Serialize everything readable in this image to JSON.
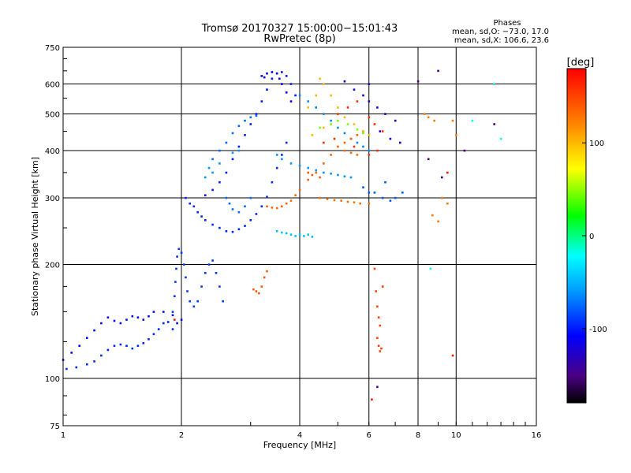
{
  "chart_data": {
    "type": "scatter",
    "title": "Tromsø 20170327 15:00:00−15:01:43",
    "subtitle": "RwPretec (8p)",
    "xlabel": "Frequency [MHz]",
    "ylabel": "Stationary phase Virtual Height [km]",
    "x_scale": "log",
    "y_scale": "log",
    "xlim": [
      1,
      16
    ],
    "ylim": [
      75,
      750
    ],
    "x_ticks": [
      1,
      2,
      4,
      6,
      8,
      10,
      16
    ],
    "y_ticks": [
      75,
      100,
      200,
      300,
      400,
      500,
      600,
      750
    ],
    "grid": true,
    "stats": {
      "heading": "Phases",
      "o_line": "mean, sd,O: −73.0, 17.0",
      "x_line": "mean, sd,X: 106.6, 23.6"
    },
    "colorbar": {
      "label": "[deg]",
      "range": [
        -180,
        180
      ],
      "ticks": [
        100,
        0,
        -100
      ],
      "colormap": "rainbow"
    },
    "series": [
      {
        "phase": -105,
        "points": [
          [
            1.0,
            112
          ],
          [
            1.05,
            117
          ],
          [
            1.1,
            122
          ],
          [
            1.15,
            128
          ],
          [
            1.2,
            134
          ],
          [
            1.25,
            140
          ],
          [
            1.3,
            145
          ],
          [
            1.35,
            142
          ],
          [
            1.4,
            140
          ],
          [
            1.45,
            143
          ],
          [
            1.5,
            146
          ],
          [
            1.55,
            145
          ],
          [
            1.6,
            143
          ],
          [
            1.65,
            146
          ],
          [
            1.7,
            150
          ],
          [
            1.8,
            150
          ],
          [
            1.9,
            147
          ],
          [
            1.95,
            140
          ],
          [
            2.0,
            143
          ]
        ]
      },
      {
        "phase": -95,
        "points": [
          [
            1.02,
            106
          ],
          [
            1.08,
            107
          ],
          [
            1.15,
            109
          ],
          [
            1.2,
            111
          ],
          [
            1.25,
            115
          ],
          [
            1.3,
            119
          ],
          [
            1.35,
            122
          ],
          [
            1.4,
            123
          ],
          [
            1.45,
            122
          ],
          [
            1.5,
            120
          ],
          [
            1.55,
            122
          ],
          [
            1.6,
            124
          ],
          [
            1.65,
            127
          ],
          [
            1.7,
            131
          ],
          [
            1.75,
            135
          ],
          [
            1.8,
            140
          ],
          [
            1.85,
            141
          ],
          [
            1.9,
            135
          ]
        ]
      },
      {
        "phase": -90,
        "points": [
          [
            1.9,
            150
          ],
          [
            1.92,
            165
          ],
          [
            1.93,
            180
          ],
          [
            1.94,
            195
          ],
          [
            1.95,
            210
          ],
          [
            1.97,
            220
          ],
          [
            2.0,
            215
          ],
          [
            2.03,
            200
          ],
          [
            2.05,
            185
          ],
          [
            2.07,
            170
          ],
          [
            2.1,
            160
          ],
          [
            2.15,
            155
          ],
          [
            2.2,
            160
          ],
          [
            2.25,
            175
          ],
          [
            2.3,
            190
          ],
          [
            2.35,
            200
          ],
          [
            2.4,
            205
          ],
          [
            2.45,
            190
          ],
          [
            2.5,
            175
          ],
          [
            2.55,
            160
          ]
        ]
      },
      {
        "phase": -95,
        "points": [
          [
            2.05,
            300
          ],
          [
            2.1,
            290
          ],
          [
            2.15,
            285
          ],
          [
            2.2,
            275
          ],
          [
            2.25,
            268
          ],
          [
            2.3,
            262
          ],
          [
            2.4,
            255
          ],
          [
            2.5,
            250
          ],
          [
            2.6,
            245
          ],
          [
            2.7,
            244
          ],
          [
            2.8,
            248
          ],
          [
            2.9,
            253
          ],
          [
            3.0,
            262
          ],
          [
            3.1,
            272
          ],
          [
            3.2,
            285
          ],
          [
            3.3,
            302
          ],
          [
            3.4,
            330
          ],
          [
            3.5,
            360
          ],
          [
            3.6,
            390
          ],
          [
            3.7,
            420
          ]
        ]
      },
      {
        "phase": -100,
        "points": [
          [
            2.3,
            305
          ],
          [
            2.4,
            315
          ],
          [
            2.5,
            330
          ],
          [
            2.6,
            350
          ],
          [
            2.7,
            380
          ],
          [
            2.8,
            410
          ],
          [
            2.9,
            440
          ],
          [
            3.0,
            470
          ],
          [
            3.1,
            500
          ],
          [
            3.2,
            540
          ],
          [
            3.3,
            580
          ],
          [
            3.4,
            620
          ],
          [
            3.5,
            640
          ],
          [
            3.6,
            645
          ],
          [
            3.7,
            630
          ],
          [
            3.8,
            600
          ],
          [
            3.9,
            560
          ]
        ]
      },
      {
        "phase": -110,
        "points": [
          [
            3.2,
            630
          ],
          [
            3.25,
            625
          ],
          [
            3.3,
            640
          ],
          [
            3.4,
            645
          ],
          [
            3.5,
            640
          ],
          [
            3.55,
            620
          ],
          [
            3.6,
            600
          ],
          [
            3.7,
            570
          ],
          [
            3.8,
            540
          ]
        ]
      },
      {
        "phase": -75,
        "points": [
          [
            2.4,
            380
          ],
          [
            2.5,
            400
          ],
          [
            2.6,
            420
          ],
          [
            2.7,
            445
          ],
          [
            2.8,
            465
          ],
          [
            2.9,
            480
          ],
          [
            3.0,
            490
          ],
          [
            3.1,
            495
          ],
          [
            2.6,
            300
          ],
          [
            2.65,
            290
          ],
          [
            2.7,
            280
          ],
          [
            2.8,
            275
          ],
          [
            2.9,
            285
          ],
          [
            3.0,
            300
          ]
        ]
      },
      {
        "phase": -60,
        "points": [
          [
            2.3,
            340
          ],
          [
            2.35,
            360
          ],
          [
            2.4,
            350
          ],
          [
            2.5,
            370
          ],
          [
            2.7,
            395
          ],
          [
            2.8,
            400
          ],
          [
            3.5,
            390
          ],
          [
            3.6,
            380
          ],
          [
            3.8,
            370
          ],
          [
            4.0,
            365
          ],
          [
            4.2,
            360
          ],
          [
            4.4,
            355
          ],
          [
            4.6,
            350
          ],
          [
            4.8,
            348
          ],
          [
            5.0,
            345
          ],
          [
            5.2,
            342
          ],
          [
            5.4,
            340
          ]
        ]
      },
      {
        "phase": -45,
        "points": [
          [
            3.5,
            245
          ],
          [
            3.6,
            243
          ],
          [
            3.7,
            242
          ],
          [
            3.8,
            240
          ],
          [
            3.9,
            238
          ],
          [
            4.0,
            240
          ],
          [
            4.1,
            238
          ],
          [
            4.2,
            240
          ],
          [
            4.3,
            237
          ]
        ]
      },
      {
        "phase": -65,
        "points": [
          [
            4.0,
            560
          ],
          [
            4.2,
            540
          ],
          [
            4.4,
            520
          ],
          [
            4.6,
            500
          ],
          [
            4.8,
            480
          ],
          [
            5.0,
            460
          ],
          [
            5.2,
            445
          ],
          [
            5.4,
            430
          ],
          [
            5.6,
            420
          ],
          [
            5.8,
            410
          ],
          [
            6.0,
            400
          ]
        ]
      },
      {
        "phase": 135,
        "points": [
          [
            3.3,
            285
          ],
          [
            3.4,
            283
          ],
          [
            3.5,
            282
          ],
          [
            3.6,
            285
          ],
          [
            3.7,
            290
          ],
          [
            3.8,
            295
          ],
          [
            3.9,
            305
          ],
          [
            4.0,
            315
          ],
          [
            4.2,
            335
          ],
          [
            4.4,
            350
          ],
          [
            4.6,
            370
          ],
          [
            4.8,
            390
          ],
          [
            5.0,
            410
          ],
          [
            5.2,
            420
          ],
          [
            5.4,
            430
          ],
          [
            5.6,
            440
          ],
          [
            5.8,
            450
          ]
        ]
      },
      {
        "phase": 130,
        "points": [
          [
            4.5,
            300
          ],
          [
            4.7,
            298
          ],
          [
            4.9,
            296
          ],
          [
            5.1,
            295
          ],
          [
            5.3,
            293
          ],
          [
            5.5,
            292
          ],
          [
            5.7,
            290
          ],
          [
            6.0,
            290
          ],
          [
            5.2,
            400
          ],
          [
            5.4,
            395
          ],
          [
            5.6,
            390
          ]
        ]
      },
      {
        "phase": 140,
        "points": [
          [
            3.05,
            172
          ],
          [
            3.1,
            170
          ],
          [
            3.15,
            168
          ],
          [
            3.2,
            175
          ],
          [
            3.25,
            185
          ],
          [
            3.3,
            192
          ],
          [
            4.2,
            350
          ],
          [
            4.3,
            345
          ],
          [
            4.5,
            340
          ]
        ]
      },
      {
        "phase": 100,
        "points": [
          [
            4.2,
            520
          ],
          [
            4.4,
            560
          ],
          [
            4.5,
            620
          ],
          [
            4.6,
            600
          ],
          [
            4.8,
            560
          ],
          [
            5.0,
            520
          ],
          [
            5.2,
            490
          ],
          [
            5.5,
            470
          ],
          [
            5.8,
            450
          ],
          [
            6.0,
            440
          ],
          [
            4.3,
            440
          ],
          [
            4.6,
            460
          ]
        ]
      },
      {
        "phase": 45,
        "points": [
          [
            4.5,
            460
          ],
          [
            4.8,
            470
          ],
          [
            5.0,
            480
          ],
          [
            5.3,
            470
          ],
          [
            5.6,
            455
          ],
          [
            5.8,
            445
          ]
        ]
      },
      {
        "phase": 160,
        "points": [
          [
            5.0,
            500
          ],
          [
            5.3,
            520
          ],
          [
            5.6,
            540
          ],
          [
            6.0,
            490
          ],
          [
            6.2,
            470
          ],
          [
            6.5,
            450
          ],
          [
            4.6,
            420
          ],
          [
            4.9,
            430
          ],
          [
            5.5,
            410
          ],
          [
            6.0,
            390
          ],
          [
            6.3,
            400
          ]
        ]
      },
      {
        "phase": -125,
        "points": [
          [
            5.2,
            610
          ],
          [
            5.5,
            580
          ],
          [
            5.8,
            560
          ],
          [
            6.0,
            540
          ],
          [
            6.3,
            520
          ],
          [
            6.6,
            500
          ],
          [
            7.0,
            480
          ],
          [
            6.0,
            600
          ],
          [
            6.4,
            450
          ],
          [
            6.8,
            430
          ],
          [
            7.2,
            420
          ]
        ]
      },
      {
        "phase": -80,
        "points": [
          [
            5.8,
            320
          ],
          [
            6.2,
            310
          ],
          [
            6.5,
            300
          ],
          [
            6.8,
            295
          ],
          [
            7.0,
            300
          ],
          [
            7.3,
            310
          ],
          [
            6.0,
            310
          ],
          [
            6.6,
            330
          ]
        ]
      },
      {
        "phase": 150,
        "points": [
          [
            6.2,
            195
          ],
          [
            6.25,
            170
          ],
          [
            6.3,
            155
          ],
          [
            6.35,
            145
          ],
          [
            6.4,
            138
          ],
          [
            6.3,
            128
          ],
          [
            6.35,
            122
          ],
          [
            6.4,
            118
          ],
          [
            6.5,
            175
          ],
          [
            6.45,
            120
          ]
        ]
      },
      {
        "phase": 125,
        "points": [
          [
            8.3,
            500
          ],
          [
            8.5,
            490
          ],
          [
            8.8,
            480
          ],
          [
            9.2,
            300
          ],
          [
            9.5,
            290
          ],
          [
            9.8,
            480
          ],
          [
            10.0,
            440
          ],
          [
            9.0,
            260
          ],
          [
            8.7,
            270
          ]
        ]
      },
      {
        "phase": -150,
        "points": [
          [
            6.3,
            95
          ],
          [
            9.0,
            650
          ],
          [
            8.5,
            380
          ],
          [
            9.2,
            340
          ],
          [
            10.5,
            400
          ],
          [
            8.0,
            610
          ],
          [
            12.5,
            470
          ]
        ]
      },
      {
        "phase": 170,
        "points": [
          [
            1.92,
            143
          ],
          [
            9.5,
            350
          ],
          [
            9.8,
            115
          ],
          [
            6.1,
            88
          ]
        ]
      },
      {
        "phase": -20,
        "points": [
          [
            12.5,
            600
          ],
          [
            13.0,
            430
          ],
          [
            11.0,
            480
          ],
          [
            8.6,
            195
          ]
        ]
      }
    ]
  }
}
